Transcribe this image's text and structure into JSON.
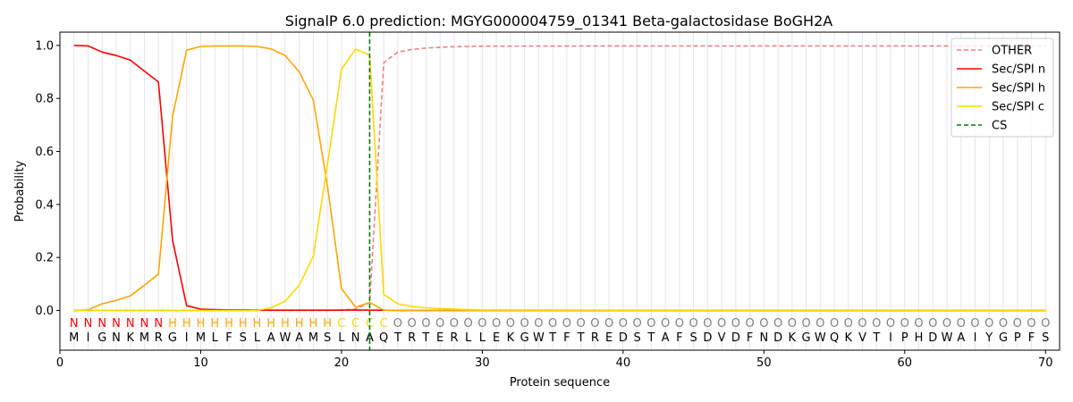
{
  "chart_data": {
    "type": "line",
    "title": "SignalP 6.0 prediction: MGYG000004759_01341 Beta-galactosidase BoGH2A",
    "xlabel": "Protein sequence",
    "ylabel": "Probability",
    "xlim": [
      0,
      71
    ],
    "ylim": [
      -0.15,
      1.05
    ],
    "xticks": [
      0,
      10,
      20,
      30,
      40,
      50,
      60,
      70
    ],
    "yticks": [
      "0.0",
      "0.2",
      "0.4",
      "0.6",
      "0.8",
      "1.0"
    ],
    "legend_position": "top-right",
    "vertical_gridlines": "every residue, light grey",
    "sequence": [
      "M",
      "I",
      "G",
      "N",
      "K",
      "M",
      "R",
      "G",
      "I",
      "M",
      "L",
      "F",
      "S",
      "L",
      "A",
      "W",
      "A",
      "M",
      "S",
      "L",
      "N",
      "A",
      "Q",
      "T",
      "R",
      "T",
      "E",
      "R",
      "L",
      "L",
      "E",
      "K",
      "G",
      "W",
      "T",
      "F",
      "T",
      "R",
      "E",
      "D",
      "S",
      "T",
      "A",
      "F",
      "S",
      "D",
      "V",
      "D",
      "F",
      "N",
      "D",
      "K",
      "G",
      "W",
      "Q",
      "K",
      "V",
      "T",
      "I",
      "P",
      "H",
      "D",
      "W",
      "A",
      "I",
      "Y",
      "G",
      "P",
      "F",
      "S"
    ],
    "region_labels": [
      "N",
      "N",
      "N",
      "N",
      "N",
      "N",
      "N",
      "H",
      "H",
      "H",
      "H",
      "H",
      "H",
      "H",
      "H",
      "H",
      "H",
      "H",
      "H",
      "C",
      "C",
      "C",
      "C",
      "O",
      "O",
      "O",
      "O",
      "O",
      "O",
      "O",
      "O",
      "O",
      "O",
      "O",
      "O",
      "O",
      "O",
      "O",
      "O",
      "O",
      "O",
      "O",
      "O",
      "O",
      "O",
      "O",
      "O",
      "O",
      "O",
      "O",
      "O",
      "O",
      "O",
      "O",
      "O",
      "O",
      "O",
      "O",
      "O",
      "O",
      "O",
      "O",
      "O",
      "O",
      "O",
      "O",
      "O",
      "O",
      "O",
      "O"
    ],
    "region_colors": {
      "N": "#ff0000",
      "H": "#ffa500",
      "C": "#ffd700",
      "O": "#808080"
    },
    "series": [
      {
        "name": "OTHER",
        "color": "#f08080",
        "dash": "dashed",
        "x": [
          1,
          2,
          3,
          4,
          5,
          6,
          7,
          8,
          9,
          10,
          11,
          12,
          13,
          14,
          15,
          16,
          17,
          18,
          19,
          20,
          21,
          22,
          23,
          24,
          25,
          26,
          27,
          28,
          29,
          30,
          40,
          50,
          60,
          70
        ],
        "y": [
          0,
          0,
          0,
          0,
          0,
          0,
          0,
          0,
          0,
          0,
          0,
          0,
          0,
          0,
          0,
          0,
          0,
          0,
          0,
          0.002,
          0.005,
          0.03,
          0.935,
          0.975,
          0.985,
          0.99,
          0.993,
          0.995,
          0.996,
          0.997,
          0.998,
          0.998,
          0.998,
          0.998
        ]
      },
      {
        "name": "Sec/SPI n",
        "color": "#ff0000",
        "dash": "solid",
        "x": [
          1,
          2,
          3,
          4,
          5,
          6,
          7,
          8,
          9,
          10,
          11,
          12,
          13,
          14,
          15,
          16,
          17,
          18,
          19,
          20,
          21,
          22,
          23,
          24,
          30,
          40,
          50,
          60,
          70
        ],
        "y": [
          1.0,
          0.998,
          0.975,
          0.962,
          0.945,
          0.903,
          0.862,
          0.265,
          0.018,
          0.005,
          0.003,
          0.002,
          0.002,
          0.001,
          0.001,
          0.001,
          0.001,
          0.001,
          0.001,
          0.001,
          0.002,
          0.001,
          0.001,
          0,
          0,
          0,
          0,
          0,
          0
        ]
      },
      {
        "name": "Sec/SPI h",
        "color": "#ffa500",
        "dash": "solid",
        "x": [
          1,
          2,
          3,
          4,
          5,
          6,
          7,
          8,
          9,
          10,
          11,
          12,
          13,
          14,
          15,
          16,
          17,
          18,
          19,
          20,
          21,
          22,
          23,
          24,
          30,
          40,
          50,
          60,
          70
        ],
        "y": [
          0,
          0.002,
          0.025,
          0.038,
          0.055,
          0.095,
          0.137,
          0.733,
          0.982,
          0.996,
          0.998,
          0.998,
          0.998,
          0.996,
          0.987,
          0.962,
          0.9,
          0.793,
          0.47,
          0.083,
          0.012,
          0.03,
          0.001,
          0,
          0,
          0,
          0,
          0,
          0
        ]
      },
      {
        "name": "Sec/SPI c",
        "color": "#ffd700",
        "dash": "solid",
        "x": [
          1,
          2,
          3,
          4,
          5,
          6,
          7,
          8,
          9,
          10,
          11,
          12,
          13,
          14,
          15,
          16,
          17,
          18,
          19,
          20,
          21,
          22,
          23,
          24,
          25,
          26,
          27,
          28,
          29,
          30,
          40,
          50,
          60,
          70
        ],
        "y": [
          0,
          0,
          0,
          0,
          0,
          0,
          0,
          0,
          0,
          0,
          0,
          0,
          0,
          0,
          0.01,
          0.035,
          0.095,
          0.205,
          0.55,
          0.91,
          0.986,
          0.963,
          0.06,
          0.025,
          0.015,
          0.01,
          0.007,
          0.005,
          0.003,
          0.002,
          0.001,
          0.001,
          0.001,
          0.001
        ]
      },
      {
        "name": "CS",
        "color": "#008000",
        "dash": "dashed",
        "vline_x": 22
      }
    ]
  }
}
